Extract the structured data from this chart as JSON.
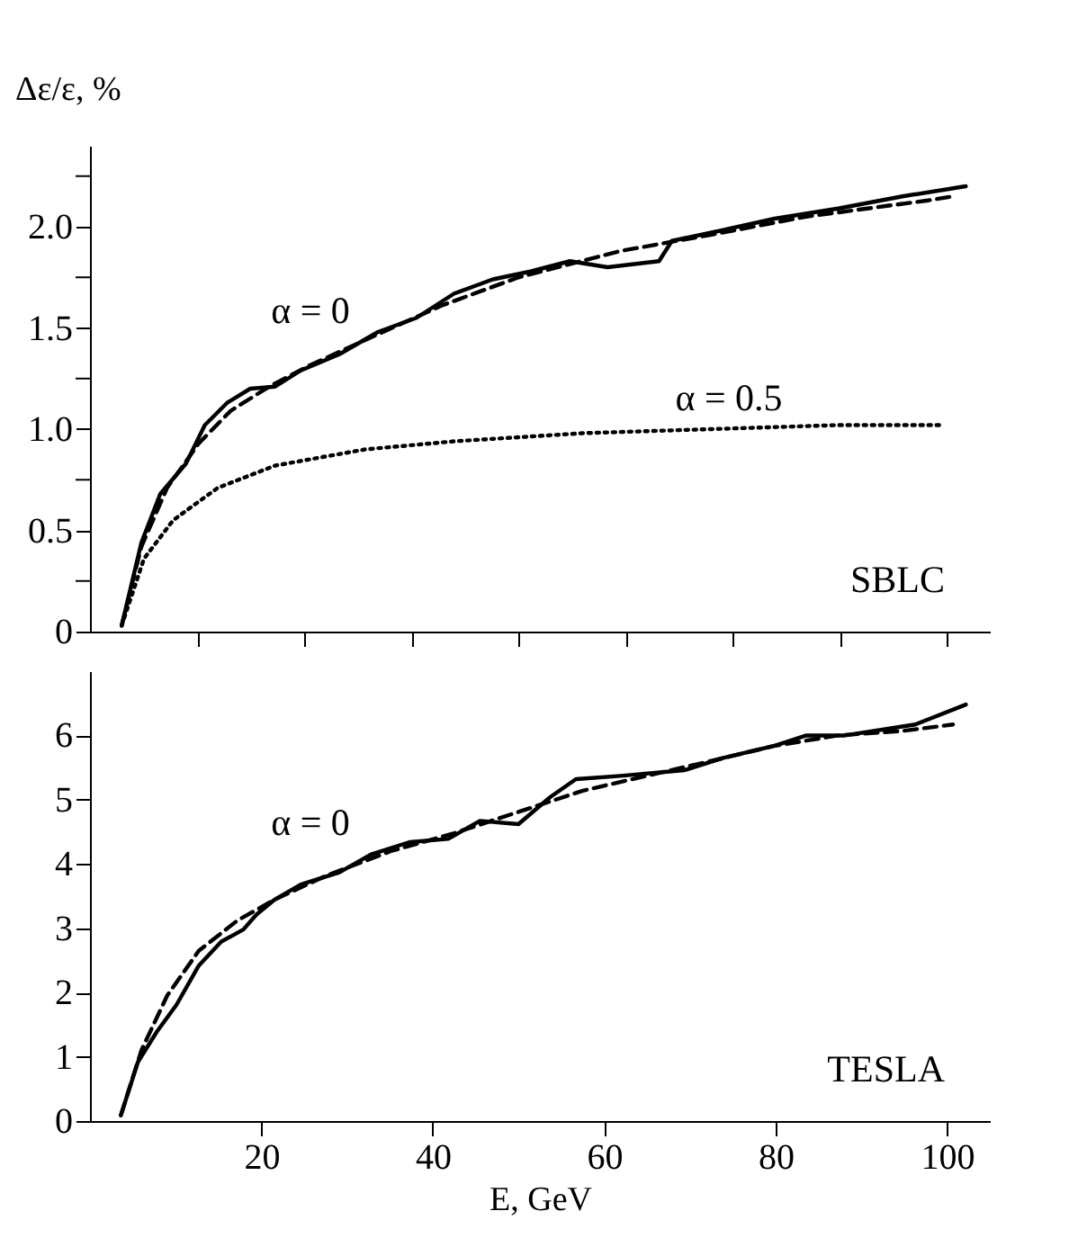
{
  "chart_data": [
    {
      "type": "line",
      "ylabel": "Δε/ε, %",
      "xlim": [
        0,
        105
      ],
      "ylim": [
        0,
        2.4
      ],
      "tick_labels": "y",
      "xticks": [
        {
          "value": 12.5,
          "label": null
        },
        {
          "value": 25,
          "label": null
        },
        {
          "value": 37.5,
          "label": null
        },
        {
          "value": 50,
          "label": null
        },
        {
          "value": 62.5,
          "label": null
        },
        {
          "value": 75,
          "label": null
        },
        {
          "value": 87.5,
          "label": null
        },
        {
          "value": 100,
          "label": null
        }
      ],
      "yticks": [
        0,
        {
          "value": 0.25,
          "label": null
        },
        0.5,
        {
          "value": 0.75,
          "label": null
        },
        {
          "value": 1,
          "label": "1.0"
        },
        {
          "value": 1.25,
          "label": null
        },
        1.5,
        {
          "value": 1.75,
          "label": null
        },
        {
          "value": 2,
          "label": "2.0"
        },
        {
          "value": 2.25,
          "label": null
        }
      ],
      "series": [
        {
          "color": "#000000",
          "line_style": "solid",
          "x": [
            3.7,
            6.0,
            8.2,
            11.2,
            13.4,
            16.0,
            18.7,
            21.6,
            24.6,
            29.1,
            33.6,
            38.1,
            42.5,
            47.0,
            51.5,
            56.0,
            60.4,
            66.4,
            67.9,
            72.4,
            79.9,
            87.3,
            94.8,
            102.2
          ],
          "values": [
            0.03,
            0.44,
            0.68,
            0.83,
            1.02,
            1.13,
            1.2,
            1.21,
            1.29,
            1.37,
            1.48,
            1.55,
            1.67,
            1.74,
            1.78,
            1.83,
            1.8,
            1.83,
            1.93,
            1.97,
            2.04,
            2.09,
            2.15,
            2.2
          ]
        },
        {
          "color": "#000000",
          "line_style": "dashed",
          "x": [
            3.7,
            6.0,
            9.0,
            12.7,
            16.4,
            20.9,
            25.4,
            32.1,
            41.0,
            50.0,
            61.9,
            72.4,
            83.6,
            97.8,
            100.7
          ],
          "values": [
            0.03,
            0.42,
            0.71,
            0.93,
            1.09,
            1.21,
            1.31,
            1.44,
            1.61,
            1.75,
            1.88,
            1.96,
            2.05,
            2.13,
            2.15
          ]
        },
        {
          "color": "#000000",
          "line_style": "dotted",
          "x": [
            3.7,
            6.3,
            9.7,
            14.9,
            21.6,
            32.1,
            42.5,
            57.5,
            72.4,
            87.3,
            99.3
          ],
          "values": [
            0.03,
            0.36,
            0.55,
            0.71,
            0.82,
            0.9,
            0.94,
            0.98,
            1.0,
            1.02,
            1.02
          ]
        }
      ],
      "annotations": [
        "α = 0",
        "α = 0.5",
        "SBLC"
      ]
    },
    {
      "type": "line",
      "xlabel": "E, GeV",
      "xlim": [
        0,
        105
      ],
      "ylim": [
        0,
        7
      ],
      "xticks": [
        20,
        40,
        60,
        80,
        100
      ],
      "yticks": [
        0,
        1,
        2,
        3,
        4,
        5,
        6
      ],
      "series": [
        {
          "color": "#000000",
          "line_style": "solid",
          "x": [
            3.6,
            5.6,
            7.8,
            10.1,
            12.7,
            15.3,
            17.9,
            19.4,
            21.6,
            24.6,
            29.1,
            32.8,
            37.3,
            41.8,
            45.5,
            50.0,
            53.7,
            56.7,
            61.9,
            69.4,
            73.9,
            79.9,
            83.6,
            88.1,
            96.3,
            102.2
          ],
          "values": [
            0.09,
            0.92,
            1.39,
            1.81,
            2.42,
            2.79,
            2.98,
            3.21,
            3.45,
            3.68,
            3.87,
            4.15,
            4.34,
            4.39,
            4.67,
            4.62,
            5.04,
            5.32,
            5.37,
            5.46,
            5.65,
            5.84,
            6.0,
            6.0,
            6.17,
            6.48
          ]
        },
        {
          "color": "#000000",
          "line_style": "dashed",
          "x": [
            3.6,
            6.0,
            9.0,
            12.7,
            17.2,
            21.6,
            27.6,
            35.1,
            42.5,
            50.0,
            57.5,
            64.9,
            72.4,
            79.9,
            87.3,
            94.8,
            100.7
          ],
          "values": [
            0.09,
            1.1,
            1.95,
            2.65,
            3.12,
            3.45,
            3.82,
            4.2,
            4.48,
            4.81,
            5.14,
            5.37,
            5.6,
            5.84,
            6.0,
            6.07,
            6.17
          ]
        }
      ],
      "annotations": [
        "α = 0",
        "TESLA"
      ]
    }
  ]
}
